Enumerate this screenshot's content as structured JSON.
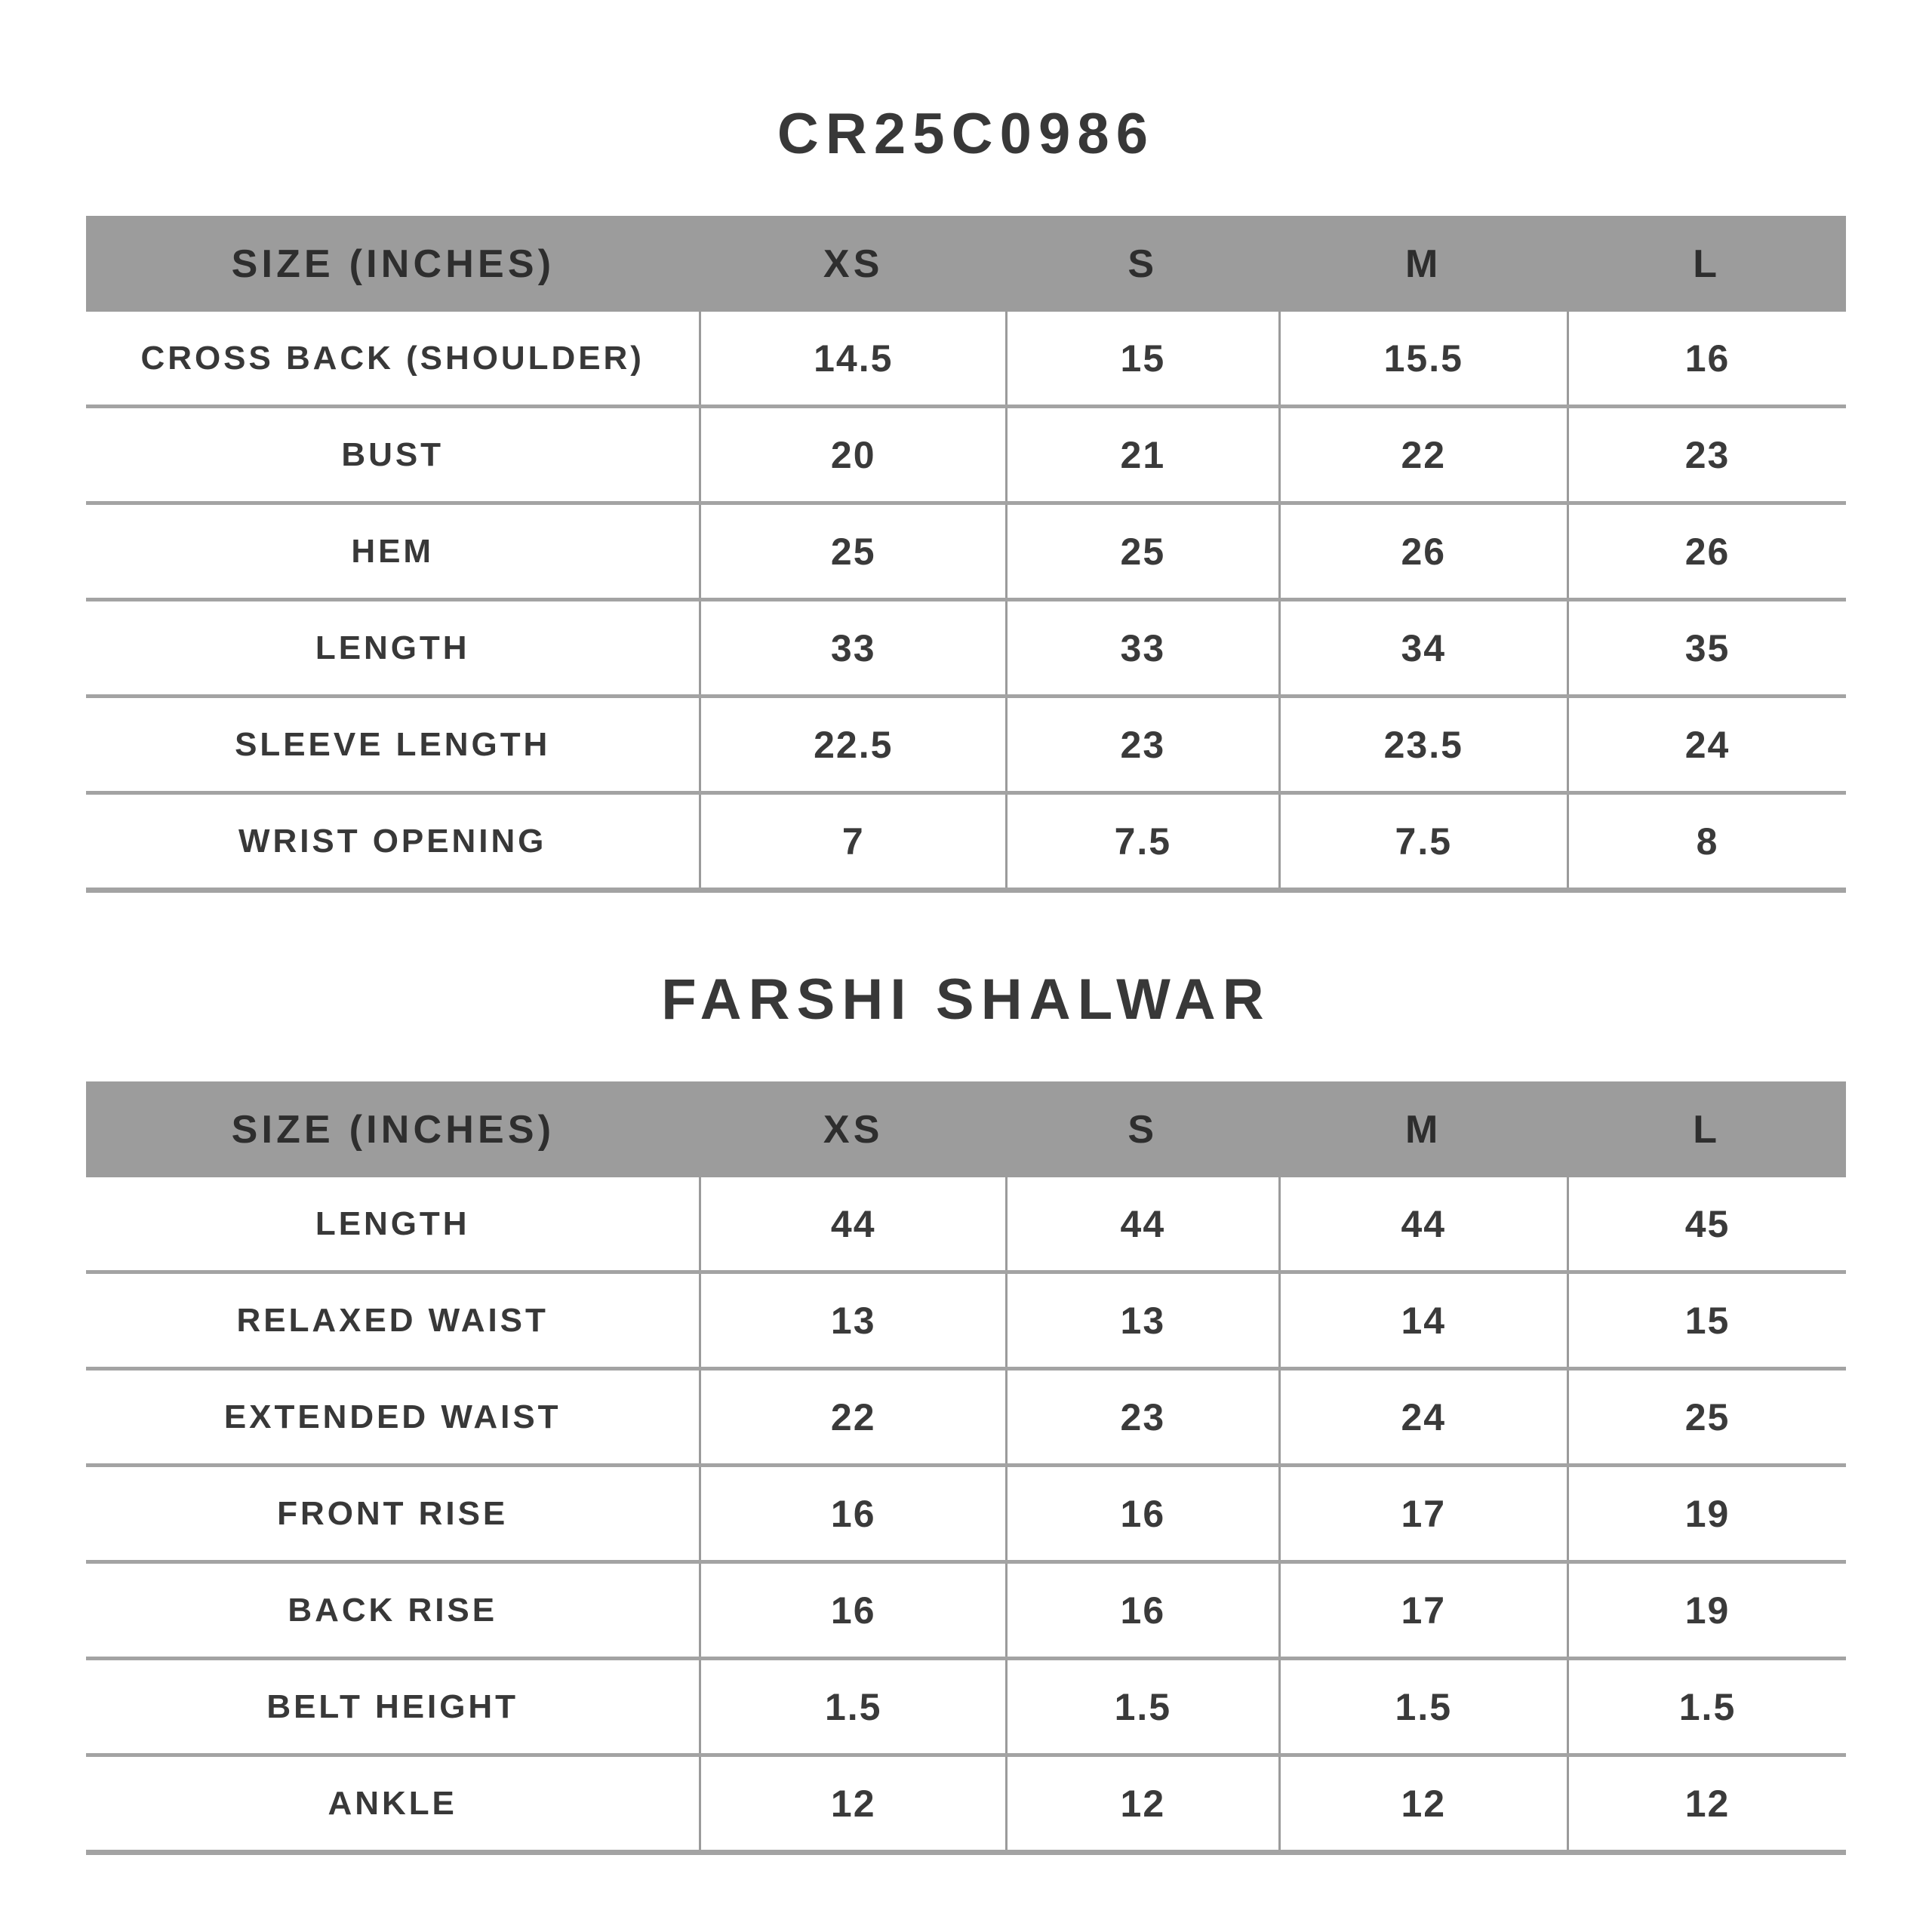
{
  "page": {
    "background": "#ffffff",
    "text_color": "#3a3a3a",
    "header_bg": "#9c9c9c",
    "divider_color": "#a3a3a3",
    "unit_note": "INCHES"
  },
  "tables": [
    {
      "title": "CR25C0986",
      "columns": [
        "SIZE (INCHES)",
        "XS",
        "S",
        "M",
        "L"
      ],
      "rows": [
        {
          "label": "CROSS BACK (SHOULDER)",
          "values": [
            "14.5",
            "15",
            "15.5",
            "16"
          ]
        },
        {
          "label": "BUST",
          "values": [
            "20",
            "21",
            "22",
            "23"
          ]
        },
        {
          "label": "HEM",
          "values": [
            "25",
            "25",
            "26",
            "26"
          ]
        },
        {
          "label": "LENGTH",
          "values": [
            "33",
            "33",
            "34",
            "35"
          ]
        },
        {
          "label": "SLEEVE LENGTH",
          "values": [
            "22.5",
            "23",
            "23.5",
            "24"
          ]
        },
        {
          "label": "WRIST OPENING",
          "values": [
            "7",
            "7.5",
            "7.5",
            "8"
          ]
        }
      ]
    },
    {
      "title": "FARSHI SHALWAR",
      "columns": [
        "SIZE (INCHES)",
        "XS",
        "S",
        "M",
        "L"
      ],
      "rows": [
        {
          "label": "LENGTH",
          "values": [
            "44",
            "44",
            "44",
            "45"
          ]
        },
        {
          "label": "RELAXED WAIST",
          "values": [
            "13",
            "13",
            "14",
            "15"
          ]
        },
        {
          "label": "EXTENDED WAIST",
          "values": [
            "22",
            "23",
            "24",
            "25"
          ]
        },
        {
          "label": "FRONT RISE",
          "values": [
            "16",
            "16",
            "17",
            "19"
          ]
        },
        {
          "label": "BACK RISE",
          "values": [
            "16",
            "16",
            "17",
            "19"
          ]
        },
        {
          "label": "BELT HEIGHT",
          "values": [
            "1.5",
            "1.5",
            "1.5",
            "1.5"
          ]
        },
        {
          "label": "ANKLE",
          "values": [
            "12",
            "12",
            "12",
            "12"
          ]
        }
      ]
    }
  ]
}
